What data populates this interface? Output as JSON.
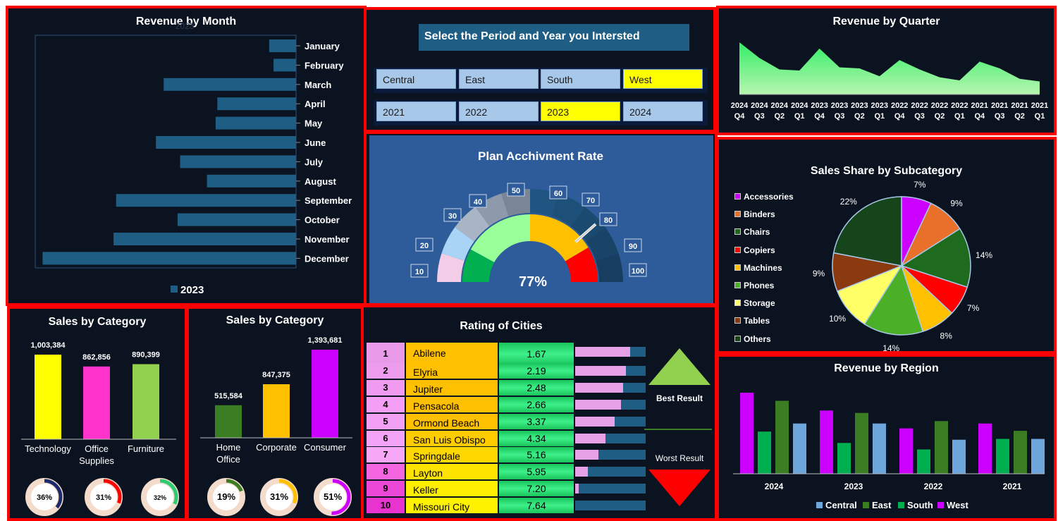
{
  "revenue_month": {
    "title": "Revenue by Month",
    "ghost_label": "2023",
    "legend": "2023",
    "bar_color": "#1e5e84",
    "chart_data": {
      "type": "bar",
      "orientation": "horizontal",
      "categories": [
        "January",
        "February",
        "March",
        "April",
        "May",
        "June",
        "July",
        "August",
        "September",
        "October",
        "November",
        "December"
      ],
      "series": [
        {
          "name": "2023",
          "values": [
            31,
            26,
            153,
            91,
            93,
            162,
            134,
            103,
            208,
            137,
            211,
            293
          ]
        }
      ],
      "xlim": [
        0,
        300
      ]
    }
  },
  "selector": {
    "title": "Select the Period and Year you Intersted",
    "regions": [
      {
        "label": "Central",
        "selected": false
      },
      {
        "label": "East",
        "selected": false
      },
      {
        "label": "South",
        "selected": false
      },
      {
        "label": "West",
        "selected": true
      }
    ],
    "years": [
      {
        "label": "2021",
        "selected": false
      },
      {
        "label": "2022",
        "selected": false
      },
      {
        "label": "2023",
        "selected": true
      },
      {
        "label": "2024",
        "selected": false
      }
    ]
  },
  "revenue_quarter": {
    "title": "Revenue by Quarter",
    "chart_data": {
      "type": "area",
      "x_years": [
        "2024",
        "2024",
        "2024",
        "2024",
        "2023",
        "2023",
        "2023",
        "2023",
        "2022",
        "2022",
        "2022",
        "2022",
        "2021",
        "2021",
        "2021",
        "2021"
      ],
      "x_quarters": [
        "Q4",
        "Q3",
        "Q2",
        "Q1",
        "Q4",
        "Q3",
        "Q2",
        "Q1",
        "Q4",
        "Q3",
        "Q2",
        "Q1",
        "Q4",
        "Q3",
        "Q2",
        "Q1"
      ],
      "values": [
        100,
        70,
        48,
        46,
        88,
        52,
        50,
        35,
        66,
        48,
        33,
        27,
        63,
        50,
        30,
        25
      ],
      "ylim": [
        0,
        100
      ]
    }
  },
  "gauge": {
    "title": "Plan Acchivment Rate",
    "value_label": "77%",
    "value": 77,
    "ticks": [
      "10",
      "20",
      "30",
      "40",
      "50",
      "60",
      "70",
      "80",
      "90",
      "100"
    ]
  },
  "sales_share": {
    "title": "Sales Share by Subcategory",
    "chart_data": {
      "type": "pie",
      "labels": [
        "Accessories",
        "Binders",
        "Chairs",
        "Copiers",
        "Machines",
        "Phones",
        "Storage",
        "Tables",
        "Others"
      ],
      "values": [
        7,
        9,
        14,
        7,
        8,
        14,
        10,
        9,
        22
      ],
      "pct_labels": [
        "7%",
        "9%",
        "14%",
        "7%",
        "8%",
        "14%",
        "10%",
        "9%",
        "22%"
      ],
      "colors": [
        "#cc00ff",
        "#e8702a",
        "#1e6b1e",
        "#ff0000",
        "#ffc000",
        "#4caf28",
        "#ffff66",
        "#8b3a0f",
        "#16451b"
      ]
    }
  },
  "cat1": {
    "title": "Sales by Category",
    "chart_data": {
      "type": "bar",
      "categories": [
        "Technology",
        "Office Supplies",
        "Furniture"
      ],
      "values": [
        1003384,
        862856,
        890399
      ],
      "value_labels": [
        "1,003,384",
        "862,856",
        "890,399"
      ],
      "colors": [
        "#ffff00",
        "#ff33cc",
        "#92d050"
      ]
    },
    "donuts": [
      {
        "label": "36%",
        "value": 36,
        "color": "#1a2a6c"
      },
      {
        "label": "31%",
        "value": 31,
        "color": "#ff0000"
      },
      {
        "label": "32%",
        "value": 32,
        "color": "#2ecc71"
      }
    ]
  },
  "cat2": {
    "title": "Sales by Category",
    "chart_data": {
      "type": "bar",
      "categories": [
        "Home Office",
        "Corporate",
        "Consumer"
      ],
      "values": [
        515584,
        847375,
        1393681
      ],
      "value_labels": [
        "515,584",
        "847,375",
        "1,393,681"
      ],
      "colors": [
        "#3a7d22",
        "#ffc000",
        "#cc00ff"
      ]
    },
    "donuts": [
      {
        "label": "19%",
        "value": 19,
        "color": "#3a7d22"
      },
      {
        "label": "31%",
        "value": 31,
        "color": "#ffc000"
      },
      {
        "label": "51%",
        "value": 51,
        "color": "#cc00ff"
      }
    ]
  },
  "rating": {
    "title": "Rating of Cities",
    "best_label": "Best Result",
    "worst_label": "Worst Result",
    "rows": [
      {
        "rank": "1",
        "city": "Abilene",
        "value": "1.67",
        "bar": 0.78
      },
      {
        "rank": "2",
        "city": "Elyria",
        "value": "2.19",
        "bar": 0.72
      },
      {
        "rank": "3",
        "city": "Jupiter",
        "value": "2.48",
        "bar": 0.68
      },
      {
        "rank": "4",
        "city": "Pensacola",
        "value": "2.66",
        "bar": 0.65
      },
      {
        "rank": "5",
        "city": "Ormond Beach",
        "value": "3.37",
        "bar": 0.56
      },
      {
        "rank": "6",
        "city": "San Luis Obispo",
        "value": "4.34",
        "bar": 0.43
      },
      {
        "rank": "7",
        "city": "Springdale",
        "value": "5.16",
        "bar": 0.33
      },
      {
        "rank": "8",
        "city": "Layton",
        "value": "5.95",
        "bar": 0.18
      },
      {
        "rank": "9",
        "city": "Keller",
        "value": "7.20",
        "bar": 0.05
      },
      {
        "rank": "10",
        "city": "Missouri City",
        "value": "7.64",
        "bar": 0.0
      }
    ]
  },
  "region": {
    "title": "Revenue by Region",
    "chart_data": {
      "type": "bar",
      "categories": [
        "2024",
        "2023",
        "2022",
        "2021"
      ],
      "series": [
        {
          "name": "West",
          "color": "#cc00ff",
          "values": [
            100,
            78,
            56,
            62
          ]
        },
        {
          "name": "South",
          "color": "#00b050",
          "values": [
            52,
            38,
            30,
            43
          ]
        },
        {
          "name": "East",
          "color": "#3a7d22",
          "values": [
            90,
            75,
            65,
            53
          ]
        },
        {
          "name": "Central",
          "color": "#6ea6dc",
          "values": [
            62,
            62,
            42,
            43
          ]
        }
      ],
      "legend": [
        "Central",
        "East",
        "South",
        "West"
      ],
      "ylim": [
        0,
        100
      ]
    }
  }
}
